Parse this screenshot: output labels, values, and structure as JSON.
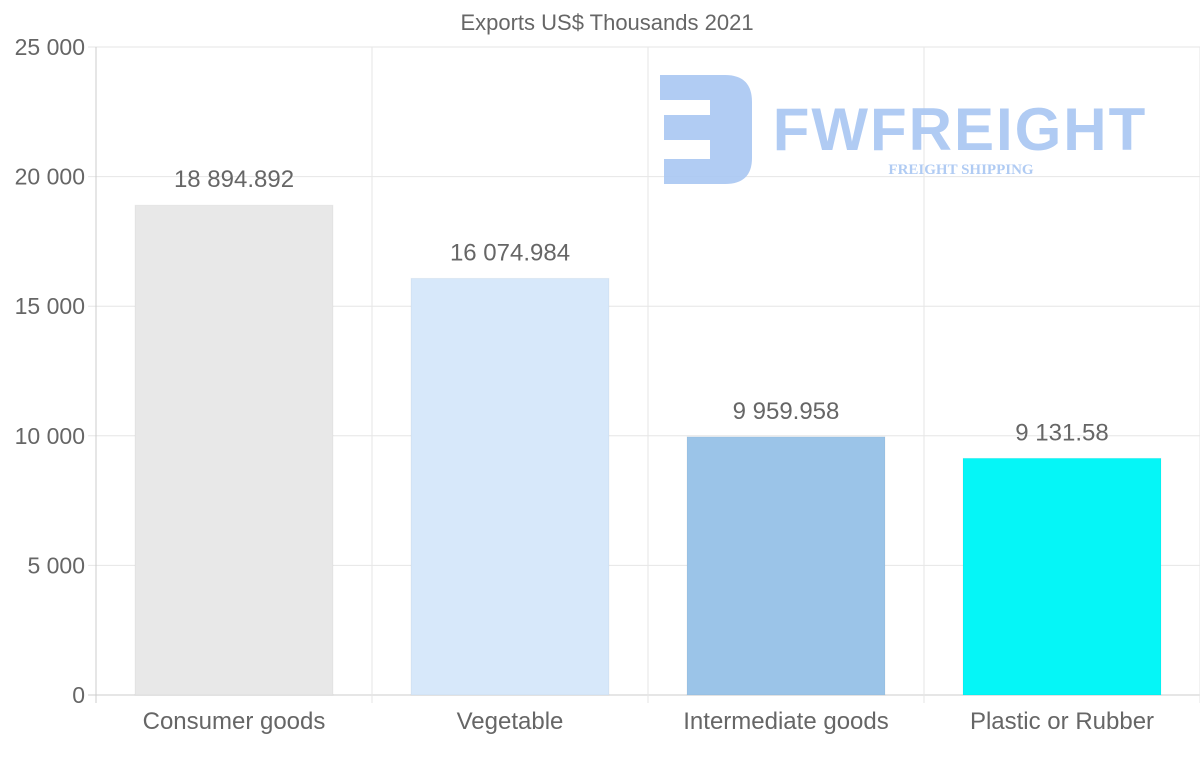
{
  "chart_data": {
    "type": "bar",
    "title": "Exports US$ Thousands 2021",
    "xlabel": "",
    "ylabel": "",
    "categories": [
      "Consumer goods",
      "Vegetable",
      "Intermediate goods",
      "Plastic or Rubber"
    ],
    "values": [
      18894.892,
      16074.984,
      9959.958,
      9131.58
    ],
    "value_labels": [
      "18 894.892",
      "16 074.984",
      "9 959.958",
      "9 131.58"
    ],
    "colors": [
      "#e8e8e8",
      "#d7e8fa",
      "#9bc4e8",
      "#05f6f7"
    ],
    "ylim": [
      0,
      25000
    ],
    "yticks": [
      0,
      5000,
      10000,
      15000,
      20000,
      25000
    ],
    "ytick_labels": [
      "0",
      "5 000",
      "10 000",
      "15 000",
      "20 000",
      "25 000"
    ],
    "grid": true,
    "legend": "none"
  },
  "watermark": {
    "brand": "FWFREIGHT",
    "tagline": "FREIGHT SHIPPING",
    "color": "#a8c6f2"
  }
}
